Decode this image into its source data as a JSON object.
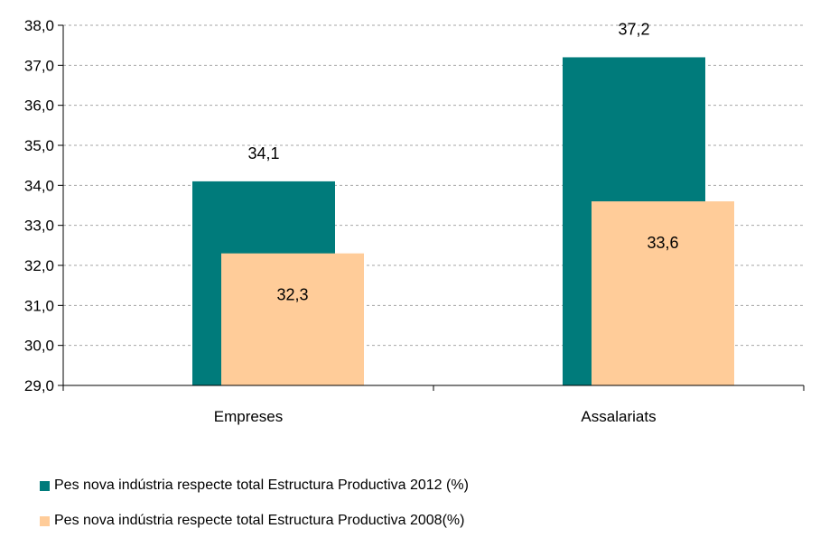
{
  "chart_data": {
    "type": "bar",
    "categories": [
      "Empreses",
      "Assalariats"
    ],
    "series": [
      {
        "name": "Pes nova indústria respecte total Estructura Productiva 2012 (%)",
        "values": [
          34.1,
          37.2
        ],
        "color": "#007b7b",
        "labels": [
          "34,1",
          "37,2"
        ]
      },
      {
        "name": "Pes nova indústria respecte total Estructura Productiva 2008(%)",
        "values": [
          32.3,
          33.6
        ],
        "color": "#ffcc99",
        "labels": [
          "32,3",
          "33,6"
        ]
      }
    ],
    "ylim": [
      29.0,
      38.0
    ],
    "yticks": [
      29.0,
      30.0,
      31.0,
      32.0,
      33.0,
      34.0,
      35.0,
      36.0,
      37.0,
      38.0
    ],
    "ytick_labels": [
      "29,0",
      "30,0",
      "31,0",
      "32,0",
      "33,0",
      "34,0",
      "35,0",
      "36,0",
      "37,0",
      "38,0"
    ],
    "grid": true,
    "legend_position": "bottom-left",
    "title": "",
    "xlabel": "",
    "ylabel": ""
  }
}
